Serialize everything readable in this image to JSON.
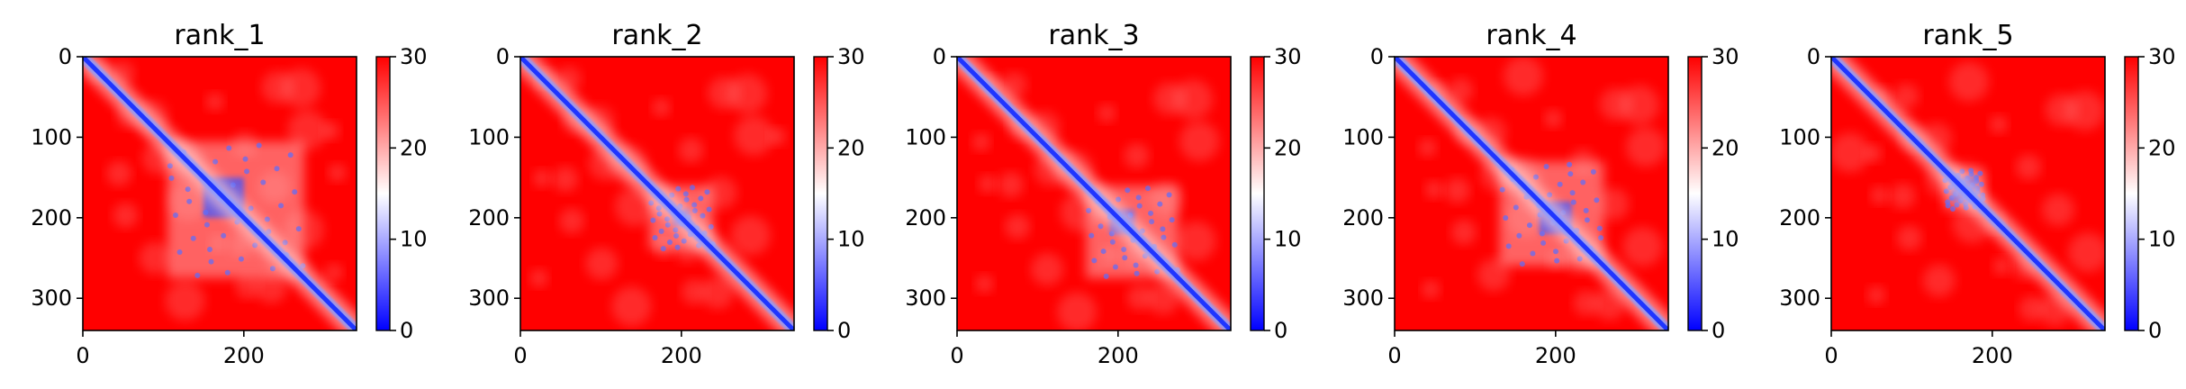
{
  "chart_data": [
    {
      "type": "heatmap",
      "title": "rank_1",
      "x_ticks": [
        0,
        200
      ],
      "y_ticks": [
        0,
        100,
        200,
        300
      ],
      "xlim": [
        0,
        340
      ],
      "ylim": [
        340,
        0
      ],
      "colorbar": {
        "ticks": [
          0,
          10,
          20,
          30
        ],
        "range": [
          0,
          30
        ],
        "cmap": "bwr"
      },
      "features": {
        "diagonal": "low values (blue) along main diagonal",
        "block": {
          "from": 105,
          "to": 275,
          "peak": [
            150,
            200
          ]
        }
      }
    },
    {
      "type": "heatmap",
      "title": "rank_2",
      "x_ticks": [
        0,
        200
      ],
      "y_ticks": [
        0,
        100,
        200,
        300
      ],
      "xlim": [
        0,
        340
      ],
      "ylim": [
        340,
        0
      ],
      "colorbar": {
        "ticks": [
          0,
          10,
          20,
          30
        ],
        "range": [
          0,
          30
        ],
        "cmap": "bwr"
      },
      "features": {
        "diagonal": "low values (blue) along main diagonal",
        "block": {
          "from": 160,
          "to": 240,
          "peak": [
            190,
            210
          ]
        }
      }
    },
    {
      "type": "heatmap",
      "title": "rank_3",
      "x_ticks": [
        0,
        200
      ],
      "y_ticks": [
        0,
        100,
        200,
        300
      ],
      "xlim": [
        0,
        340
      ],
      "ylim": [
        340,
        0
      ],
      "colorbar": {
        "ticks": [
          0,
          10,
          20,
          30
        ],
        "range": [
          0,
          30
        ],
        "cmap": "bwr"
      },
      "features": {
        "diagonal": "low values (blue) along main diagonal",
        "block": {
          "from": 160,
          "to": 275,
          "peak": [
            190,
            220
          ]
        }
      }
    },
    {
      "type": "heatmap",
      "title": "rank_4",
      "x_ticks": [
        0,
        200
      ],
      "y_ticks": [
        0,
        100,
        200,
        300
      ],
      "xlim": [
        0,
        340
      ],
      "ylim": [
        340,
        0
      ],
      "colorbar": {
        "ticks": [
          0,
          10,
          20,
          30
        ],
        "range": [
          0,
          30
        ],
        "cmap": "bwr"
      },
      "features": {
        "diagonal": "low values (blue) along main diagonal",
        "block": {
          "from": 130,
          "to": 260,
          "peak": [
            180,
            220
          ]
        }
      }
    },
    {
      "type": "heatmap",
      "title": "rank_5",
      "x_ticks": [
        0,
        200
      ],
      "y_ticks": [
        0,
        100,
        200,
        300
      ],
      "xlim": [
        0,
        340
      ],
      "ylim": [
        340,
        0
      ],
      "colorbar": {
        "ticks": [
          0,
          10,
          20,
          30
        ],
        "range": [
          0,
          30
        ],
        "cmap": "bwr"
      },
      "features": {
        "diagonal": "low values (blue) along main diagonal",
        "block": {
          "from": 140,
          "to": 190,
          "peak": [
            150,
            180
          ]
        }
      }
    }
  ],
  "colors": {
    "high": "#ff0000",
    "mid": "#ffffff",
    "low": "#0000ff",
    "axis": "#000000"
  }
}
